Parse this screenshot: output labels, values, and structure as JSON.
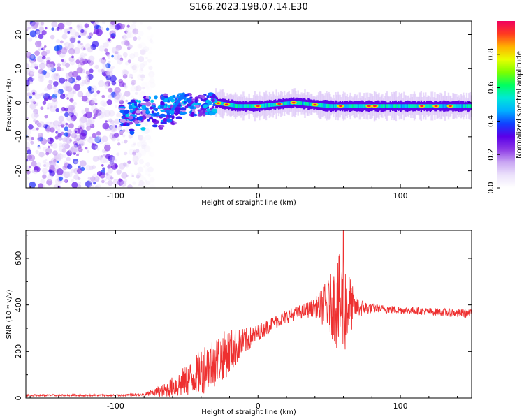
{
  "figure": {
    "title": "S166.2023.198.07.14.E30"
  },
  "chart_data": [
    {
      "type": "heatmap",
      "xlabel": "Height of straight line (km)",
      "ylabel": "Frequency (Hz)",
      "xlim": [
        -163,
        150
      ],
      "ylim": [
        -25,
        24
      ],
      "x_ticks": [
        -100,
        0,
        100
      ],
      "y_ticks": [
        -20,
        -10,
        0,
        10,
        20
      ],
      "grid": false,
      "colorbar": {
        "label": "Normalized spectral amplitude",
        "range": [
          0,
          1
        ],
        "ticks": [
          0.0,
          0.2,
          0.4,
          0.6,
          0.8
        ],
        "colormap": [
          "#ffffff",
          "#ece2fb",
          "#c9a6f3",
          "#8d3ae6",
          "#5a00e8",
          "#1040ff",
          "#00b0ff",
          "#00e8d8",
          "#00ff60",
          "#7cff00",
          "#e8ff00",
          "#ffb000",
          "#ff3a20",
          "#f00060"
        ]
      },
      "signal_track": {
        "description": "dominant narrowband energy near 0 Hz",
        "points": [
          {
            "x": -95,
            "f": -3
          },
          {
            "x": -80,
            "f": -2
          },
          {
            "x": -65,
            "f": -1
          },
          {
            "x": -55,
            "f": 0
          },
          {
            "x": -40,
            "f": -1
          },
          {
            "x": -30,
            "f": 0
          },
          {
            "x": -15,
            "f": -1
          },
          {
            "x": 0,
            "f": -1
          },
          {
            "x": 25,
            "f": 0
          },
          {
            "x": 50,
            "f": -1
          },
          {
            "x": 75,
            "f": -1
          },
          {
            "x": 100,
            "f": -1
          },
          {
            "x": 150,
            "f": -1
          }
        ],
        "strong_cores_x": [
          -28,
          -22,
          0,
          15,
          25,
          40,
          58,
          78,
          82,
          115,
          125,
          135
        ]
      },
      "noise_region_x": [
        -163,
        -80
      ]
    },
    {
      "type": "line",
      "xlabel": "Height of straight line (km)",
      "ylabel": "SNR (10 * v/v)",
      "xlim": [
        -163,
        150
      ],
      "ylim": [
        0,
        720
      ],
      "x_ticks": [
        -100,
        0,
        100
      ],
      "y_ticks": [
        0,
        200,
        400,
        600
      ],
      "grid": false,
      "series": [
        {
          "color": "#ee3030",
          "envelope": [
            {
              "x": -163,
              "mean": 12,
              "amp": 4
            },
            {
              "x": -100,
              "mean": 12,
              "amp": 4
            },
            {
              "x": -80,
              "mean": 14,
              "amp": 6
            },
            {
              "x": -65,
              "mean": 35,
              "amp": 30
            },
            {
              "x": -55,
              "mean": 60,
              "amp": 60
            },
            {
              "x": -45,
              "mean": 90,
              "amp": 80
            },
            {
              "x": -38,
              "mean": 130,
              "amp": 110
            },
            {
              "x": -30,
              "mean": 160,
              "amp": 110
            },
            {
              "x": -20,
              "mean": 200,
              "amp": 100
            },
            {
              "x": -10,
              "mean": 240,
              "amp": 60
            },
            {
              "x": 0,
              "mean": 280,
              "amp": 35
            },
            {
              "x": 10,
              "mean": 320,
              "amp": 30
            },
            {
              "x": 20,
              "mean": 350,
              "amp": 30
            },
            {
              "x": 30,
              "mean": 370,
              "amp": 30
            },
            {
              "x": 40,
              "mean": 390,
              "amp": 40
            },
            {
              "x": 50,
              "mean": 400,
              "amp": 120
            },
            {
              "x": 58,
              "mean": 400,
              "amp": 230
            },
            {
              "x": 62,
              "mean": 400,
              "amp": 200
            },
            {
              "x": 68,
              "mean": 390,
              "amp": 50
            },
            {
              "x": 80,
              "mean": 385,
              "amp": 20
            },
            {
              "x": 100,
              "mean": 378,
              "amp": 16
            },
            {
              "x": 120,
              "mean": 372,
              "amp": 16
            },
            {
              "x": 140,
              "mean": 365,
              "amp": 18
            },
            {
              "x": 150,
              "mean": 362,
              "amp": 18
            }
          ],
          "peak": {
            "x": 60,
            "y": 720
          }
        }
      ]
    }
  ]
}
